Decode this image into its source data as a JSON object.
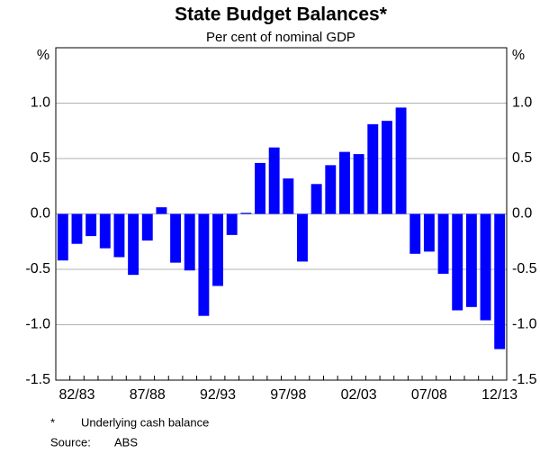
{
  "chart_data": {
    "type": "bar",
    "title": "State Budget Balances*",
    "subtitle": "Per cent of nominal GDP",
    "y_unit": "%",
    "y2_unit": "%",
    "categories": [
      null,
      "82/83",
      null,
      null,
      null,
      null,
      "87/88",
      null,
      null,
      null,
      null,
      "92/93",
      null,
      null,
      null,
      null,
      "97/98",
      null,
      null,
      null,
      null,
      "02/03",
      null,
      null,
      null,
      null,
      "07/08",
      null,
      null,
      null,
      null,
      "12/13"
    ],
    "values": [
      -0.42,
      -0.27,
      -0.2,
      -0.31,
      -0.39,
      -0.55,
      -0.24,
      0.06,
      -0.44,
      -0.51,
      -0.92,
      -0.65,
      -0.19,
      0.01,
      0.46,
      0.6,
      0.32,
      -0.43,
      0.27,
      0.44,
      0.56,
      0.54,
      0.81,
      0.84,
      0.96,
      -0.36,
      -0.34,
      -0.54,
      -0.87,
      -0.84,
      -0.96,
      -1.22
    ],
    "color": "#0000ff",
    "ylim": [
      -1.5,
      1.5
    ],
    "yticks": [
      -1.5,
      {
        "value": -1,
        "label": "-1.0"
      },
      -0.5,
      {
        "value": 0,
        "label": "0.0"
      },
      0.5,
      {
        "value": 1,
        "label": "1.0"
      }
    ],
    "grid": true,
    "footnotes": [
      {
        "marker": "*",
        "text": "Underlying cash balance"
      },
      {
        "marker": "Source:",
        "text": "ABS"
      }
    ]
  }
}
